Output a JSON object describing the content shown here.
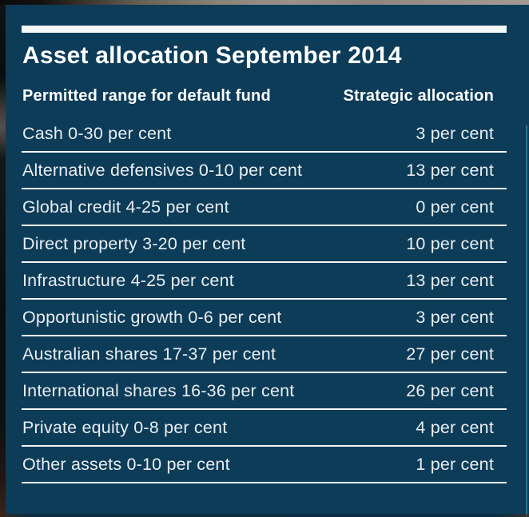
{
  "colors": {
    "navy": "#0d3c58",
    "title_white": "#ffffff",
    "row_text": "#e9eef2",
    "rule_white": "#f4f7f8",
    "edge_highlight": "#2f7396"
  },
  "table": {
    "title": "Asset allocation September 2014",
    "columns": [
      "Permitted range for default fund",
      "Strategic allocation"
    ],
    "rows": [
      {
        "range": "Cash 0-30 per cent",
        "allocation": "3 per cent"
      },
      {
        "range": "Alternative defensives 0-10 per cent",
        "allocation": "13 per cent"
      },
      {
        "range": "Global credit 4-25 per cent",
        "allocation": "0 per cent"
      },
      {
        "range": "Direct property 3-20 per cent",
        "allocation": "10 per cent"
      },
      {
        "range": "Infrastructure 4-25 per cent",
        "allocation": "13 per cent"
      },
      {
        "range": "Opportunistic growth 0-6 per cent",
        "allocation": "3 per cent"
      },
      {
        "range": "Australian shares 17-37 per cent",
        "allocation": "27 per cent"
      },
      {
        "range": "International shares 16-36 per cent",
        "allocation": "26 per cent"
      },
      {
        "range": "Private equity 0-8 per cent",
        "allocation": "4 per cent"
      },
      {
        "range": "Other assets 0-10 per cent",
        "allocation": "1 per cent"
      }
    ]
  },
  "chart_data": {
    "type": "table",
    "title": "Asset allocation September 2014",
    "columns": [
      "Permitted range for default fund",
      "Strategic allocation"
    ],
    "categories": [
      "Cash",
      "Alternative defensives",
      "Global credit",
      "Direct property",
      "Infrastructure",
      "Opportunistic growth",
      "Australian shares",
      "International shares",
      "Private equity",
      "Other assets"
    ],
    "permitted_range_pct": [
      [
        0,
        30
      ],
      [
        0,
        10
      ],
      [
        4,
        25
      ],
      [
        3,
        20
      ],
      [
        4,
        25
      ],
      [
        0,
        6
      ],
      [
        17,
        37
      ],
      [
        16,
        36
      ],
      [
        0,
        8
      ],
      [
        0,
        10
      ]
    ],
    "strategic_allocation_pct": [
      3,
      13,
      0,
      10,
      13,
      3,
      27,
      26,
      4,
      1
    ]
  }
}
